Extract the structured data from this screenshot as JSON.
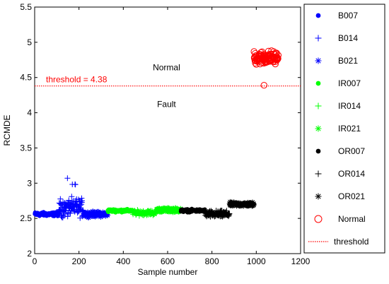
{
  "chart_data": {
    "type": "scatter",
    "xlabel": "Sample number",
    "ylabel": "RCMDE",
    "xlim": [
      0,
      1200
    ],
    "ylim": [
      2,
      5.5
    ],
    "xticks": [
      0,
      200,
      400,
      600,
      800,
      1000,
      1200
    ],
    "yticks": [
      2,
      2.5,
      3,
      3.5,
      4,
      4.5,
      5,
      5.5
    ],
    "grid": false,
    "legend_position": "right-outside",
    "threshold": {
      "value": 4.38,
      "label": "threshold = 4.38",
      "color": "#ff0000",
      "style": "dotted"
    },
    "annotations": [
      {
        "text": "Normal",
        "x": 595,
        "y": 4.6
      },
      {
        "text": "Fault",
        "x": 595,
        "y": 4.08
      }
    ],
    "series": [
      {
        "name": "B007",
        "marker": "dot",
        "color": "#0000ff",
        "x_range": [
          1,
          110
        ],
        "y_center": 2.56,
        "y_spread": 0.04
      },
      {
        "name": "B014",
        "marker": "plus",
        "color": "#0000ff",
        "x_range": [
          110,
          220
        ],
        "y_center": 2.65,
        "y_spread": 0.18,
        "y_peak": 3.15
      },
      {
        "name": "B021",
        "marker": "star",
        "color": "#0000ff",
        "x_range": [
          220,
          330
        ],
        "y_center": 2.56,
        "y_spread": 0.05
      },
      {
        "name": "IR007",
        "marker": "dot",
        "color": "#00ff00",
        "x_range": [
          330,
          440
        ],
        "y_center": 2.61,
        "y_spread": 0.03
      },
      {
        "name": "IR014",
        "marker": "plus",
        "color": "#00ff00",
        "x_range": [
          440,
          550
        ],
        "y_center": 2.58,
        "y_spread": 0.05
      },
      {
        "name": "IR021",
        "marker": "star",
        "color": "#00ff00",
        "x_range": [
          550,
          660
        ],
        "y_center": 2.62,
        "y_spread": 0.04
      },
      {
        "name": "OR007",
        "marker": "dot",
        "color": "#000000",
        "x_range": [
          660,
          770
        ],
        "y_center": 2.61,
        "y_spread": 0.03
      },
      {
        "name": "OR014",
        "marker": "plus",
        "color": "#000000",
        "x_range": [
          770,
          880
        ],
        "y_center": 2.56,
        "y_spread": 0.07
      },
      {
        "name": "OR021",
        "marker": "star",
        "color": "#000000",
        "x_range": [
          880,
          990
        ],
        "y_center": 2.7,
        "y_spread": 0.04
      },
      {
        "name": "Normal",
        "marker": "circle",
        "color": "#ff0000",
        "x_range": [
          990,
          1100
        ],
        "y_center": 4.78,
        "y_spread": 0.14,
        "y_min_point": 4.39
      }
    ],
    "legend": [
      {
        "label": "B007",
        "marker": "dot",
        "color": "#0000ff"
      },
      {
        "label": "B014",
        "marker": "plus",
        "color": "#0000ff"
      },
      {
        "label": "B021",
        "marker": "star",
        "color": "#0000ff"
      },
      {
        "label": "IR007",
        "marker": "dot",
        "color": "#00ff00"
      },
      {
        "label": "IR014",
        "marker": "plus",
        "color": "#00ff00"
      },
      {
        "label": "IR021",
        "marker": "star",
        "color": "#00ff00"
      },
      {
        "label": "OR007",
        "marker": "dot",
        "color": "#000000"
      },
      {
        "label": "OR014",
        "marker": "plus",
        "color": "#000000"
      },
      {
        "label": "OR021",
        "marker": "star",
        "color": "#000000"
      },
      {
        "label": "Normal",
        "marker": "circle",
        "color": "#ff0000"
      },
      {
        "label": "threshold",
        "marker": "dotted-line",
        "color": "#ff0000"
      }
    ]
  }
}
